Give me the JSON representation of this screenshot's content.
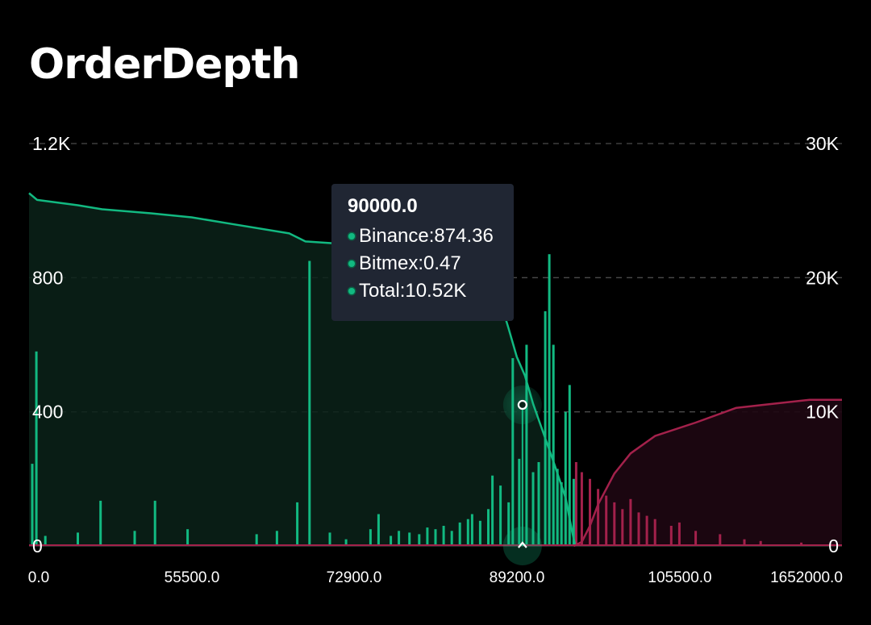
{
  "page": {
    "title": "OrderDepth"
  },
  "tooltip": {
    "title": "90000.0",
    "rows": [
      {
        "label": "Binance:874.36",
        "icon": "green-dot-icon"
      },
      {
        "label": "Bitmex:0.47",
        "icon": "green-dot-icon"
      },
      {
        "label": "Total:10.52K",
        "icon": "green-dot-icon"
      }
    ]
  },
  "colors": {
    "bid": "#12b981",
    "ask": "#a3214b",
    "background": "#000000",
    "tooltip_bg": "#202633"
  },
  "chart_data": {
    "type": "area",
    "title": "OrderDepth",
    "x_tick_labels": [
      "0.0",
      "55500.0",
      "72900.0",
      "89200.0",
      "105500.0",
      "1652000.0"
    ],
    "y_left": {
      "ticks": [
        "0",
        "400",
        "800",
        "1.2K"
      ],
      "ylim": [
        0,
        1200
      ],
      "meaning": "per-level size (bars)"
    },
    "y_right": {
      "ticks": [
        "0",
        "10K",
        "20K",
        "30K"
      ],
      "ylim": [
        0,
        30000
      ],
      "meaning": "cumulative depth (lines)"
    },
    "grid": true,
    "highlight": {
      "x": "90000.0",
      "binance": 874.36,
      "bitmex": 0.47,
      "total": 10520
    },
    "series": [
      {
        "side": "bid",
        "cumulative_points": [
          [
            0.0,
            26300
          ],
          [
            0.01,
            25800
          ],
          [
            0.06,
            25400
          ],
          [
            0.09,
            25100
          ],
          [
            0.15,
            24800
          ],
          [
            0.2,
            24500
          ],
          [
            0.25,
            24000
          ],
          [
            0.32,
            23300
          ],
          [
            0.34,
            22700
          ],
          [
            0.44,
            22300
          ],
          [
            0.48,
            21600
          ],
          [
            0.53,
            21200
          ],
          [
            0.565,
            19900
          ],
          [
            0.58,
            18200
          ],
          [
            0.59,
            16200
          ],
          [
            0.6,
            14100
          ],
          [
            0.61,
            12700
          ],
          [
            0.62,
            10600
          ],
          [
            0.63,
            8900
          ],
          [
            0.645,
            6300
          ],
          [
            0.66,
            3600
          ],
          [
            0.668,
            1100
          ],
          [
            0.672,
            0
          ]
        ],
        "bars": [
          [
            0.004,
            245
          ],
          [
            0.009,
            580
          ],
          [
            0.02,
            30
          ],
          [
            0.06,
            40
          ],
          [
            0.088,
            135
          ],
          [
            0.13,
            45
          ],
          [
            0.155,
            135
          ],
          [
            0.195,
            50
          ],
          [
            0.28,
            35
          ],
          [
            0.305,
            45
          ],
          [
            0.33,
            130
          ],
          [
            0.345,
            850
          ],
          [
            0.37,
            40
          ],
          [
            0.39,
            20
          ],
          [
            0.42,
            50
          ],
          [
            0.43,
            95
          ],
          [
            0.445,
            30
          ],
          [
            0.455,
            45
          ],
          [
            0.468,
            40
          ],
          [
            0.48,
            35
          ],
          [
            0.49,
            55
          ],
          [
            0.5,
            50
          ],
          [
            0.51,
            60
          ],
          [
            0.52,
            45
          ],
          [
            0.53,
            70
          ],
          [
            0.54,
            80
          ],
          [
            0.545,
            95
          ],
          [
            0.555,
            75
          ],
          [
            0.565,
            110
          ],
          [
            0.57,
            210
          ],
          [
            0.58,
            180
          ],
          [
            0.59,
            130
          ],
          [
            0.595,
            560
          ],
          [
            0.603,
            260
          ],
          [
            0.612,
            600
          ],
          [
            0.62,
            220
          ],
          [
            0.627,
            250
          ],
          [
            0.635,
            700
          ],
          [
            0.64,
            870
          ],
          [
            0.645,
            600
          ],
          [
            0.65,
            230
          ],
          [
            0.655,
            190
          ],
          [
            0.66,
            400
          ],
          [
            0.665,
            480
          ],
          [
            0.67,
            200
          ]
        ]
      },
      {
        "side": "ask",
        "cumulative_points": [
          [
            0.67,
            0
          ],
          [
            0.68,
            300
          ],
          [
            0.69,
            1500
          ],
          [
            0.7,
            3100
          ],
          [
            0.72,
            5400
          ],
          [
            0.74,
            6900
          ],
          [
            0.77,
            8200
          ],
          [
            0.82,
            9200
          ],
          [
            0.87,
            10300
          ],
          [
            0.9,
            10500
          ],
          [
            0.96,
            10900
          ],
          [
            1.0,
            10900
          ]
        ],
        "bars": [
          [
            0.673,
            250
          ],
          [
            0.68,
            220
          ],
          [
            0.69,
            200
          ],
          [
            0.7,
            170
          ],
          [
            0.71,
            150
          ],
          [
            0.72,
            130
          ],
          [
            0.73,
            110
          ],
          [
            0.74,
            140
          ],
          [
            0.75,
            100
          ],
          [
            0.76,
            90
          ],
          [
            0.77,
            80
          ],
          [
            0.79,
            60
          ],
          [
            0.8,
            70
          ],
          [
            0.82,
            45
          ],
          [
            0.85,
            35
          ],
          [
            0.88,
            20
          ],
          [
            0.9,
            15
          ],
          [
            0.95,
            10
          ]
        ]
      }
    ]
  }
}
